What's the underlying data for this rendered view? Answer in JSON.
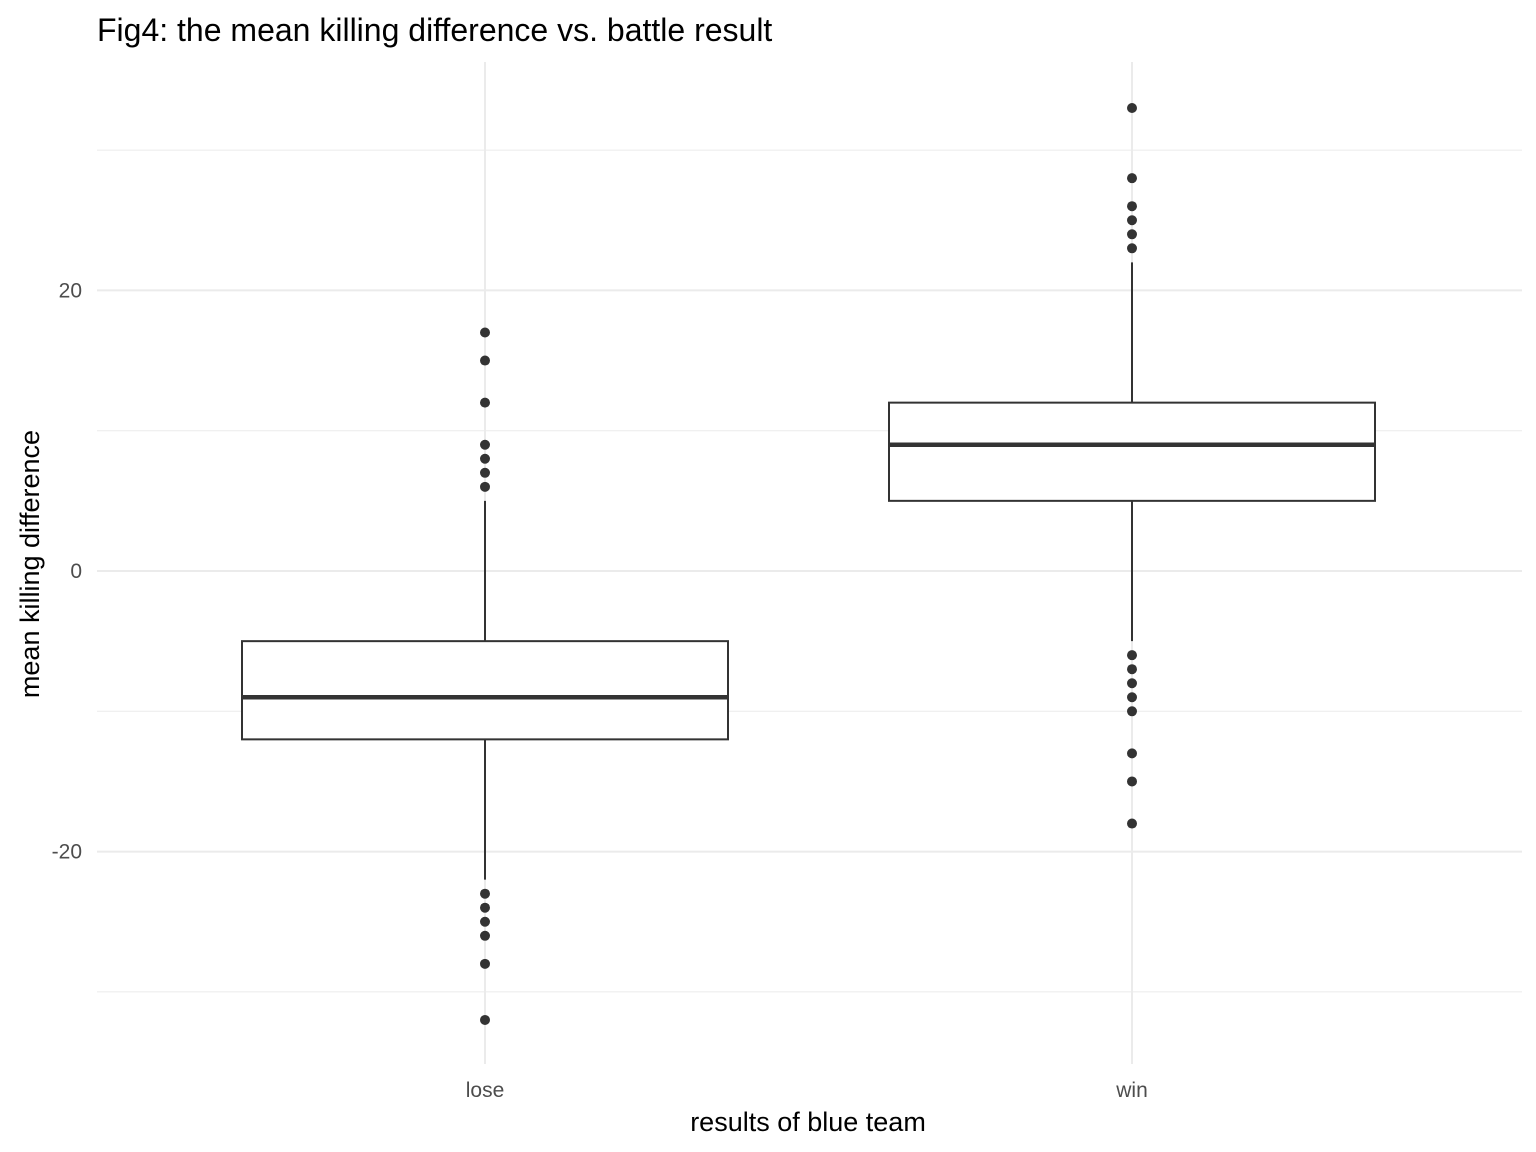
{
  "chart_data": {
    "type": "boxplot",
    "title": "Fig4: the mean killing difference vs. battle result",
    "xlabel": "results of blue team",
    "ylabel": "mean killing difference",
    "categories": [
      "lose",
      "win"
    ],
    "ylim": [
      -35.5,
      36
    ],
    "yticks": [
      -20,
      0,
      20
    ],
    "ytick_labels": [
      "-20",
      "0",
      "20"
    ],
    "grid": true,
    "legend": "none",
    "colors": {
      "box_outline": "#333333",
      "box_fill": "#ffffff",
      "outlier": "#333333",
      "grid": "#ebebeb"
    },
    "boxes": [
      {
        "category": "lose",
        "whisker_low": -22,
        "q1": -12,
        "median": -9,
        "q3": -5,
        "whisker_high": 5,
        "outliers": [
          17,
          15,
          12,
          9,
          8,
          7,
          6,
          -23,
          -24,
          -25,
          -26,
          -28,
          -32
        ]
      },
      {
        "category": "win",
        "whisker_low": -5,
        "q1": 5,
        "median": 9,
        "q3": 12,
        "whisker_high": 22,
        "outliers": [
          33,
          28,
          26,
          25,
          24,
          23,
          -6,
          -7,
          -8,
          -9,
          -10,
          -13,
          -15,
          -18
        ]
      }
    ]
  }
}
